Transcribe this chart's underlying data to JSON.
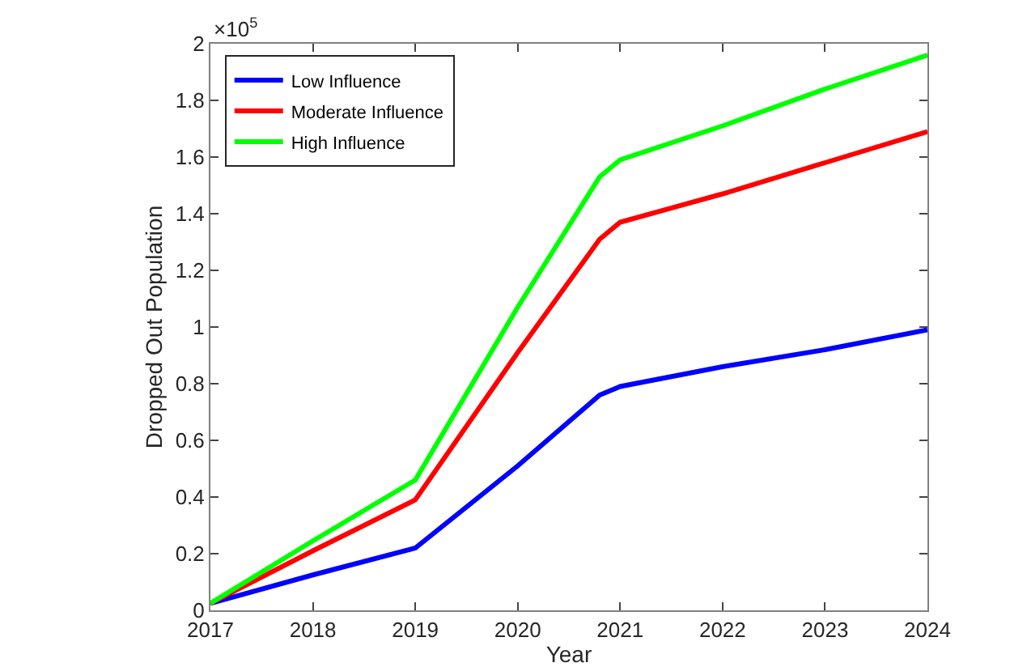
{
  "chart_data": {
    "type": "line",
    "xlabel": "Year",
    "ylabel": "Dropped Out Population",
    "annotations": [
      "×10$^{5}$"
    ],
    "x": [
      2017,
      2018,
      2019,
      2020,
      2020.8,
      2021,
      2022,
      2023,
      2024
    ],
    "series": [
      {
        "name": "Low Influence",
        "color": "#0000ff",
        "values": [
          0.025,
          0.125,
          0.22,
          0.51,
          0.76,
          0.79,
          0.86,
          0.92,
          0.99
        ]
      },
      {
        "name": "Moderate Influence",
        "color": "#ff0000",
        "values": [
          0.025,
          0.21,
          0.39,
          0.91,
          1.31,
          1.37,
          1.47,
          1.58,
          1.69
        ]
      },
      {
        "name": "High Influence",
        "color": "#00ff00",
        "values": [
          0.025,
          0.245,
          0.46,
          1.07,
          1.53,
          1.59,
          1.71,
          1.84,
          1.96
        ]
      }
    ],
    "xlim": [
      2017,
      2024
    ],
    "xticks": [
      2017,
      2018,
      2019,
      2020,
      2021,
      2022,
      2023,
      2024
    ],
    "ylim": [
      0,
      2
    ],
    "yticks": [
      0,
      0.2,
      0.4,
      0.6,
      0.8,
      1,
      1.2,
      1.4,
      1.6,
      1.8,
      2
    ],
    "legend": "top left",
    "grid": false,
    "marker": "none",
    "line_style": "solid"
  }
}
